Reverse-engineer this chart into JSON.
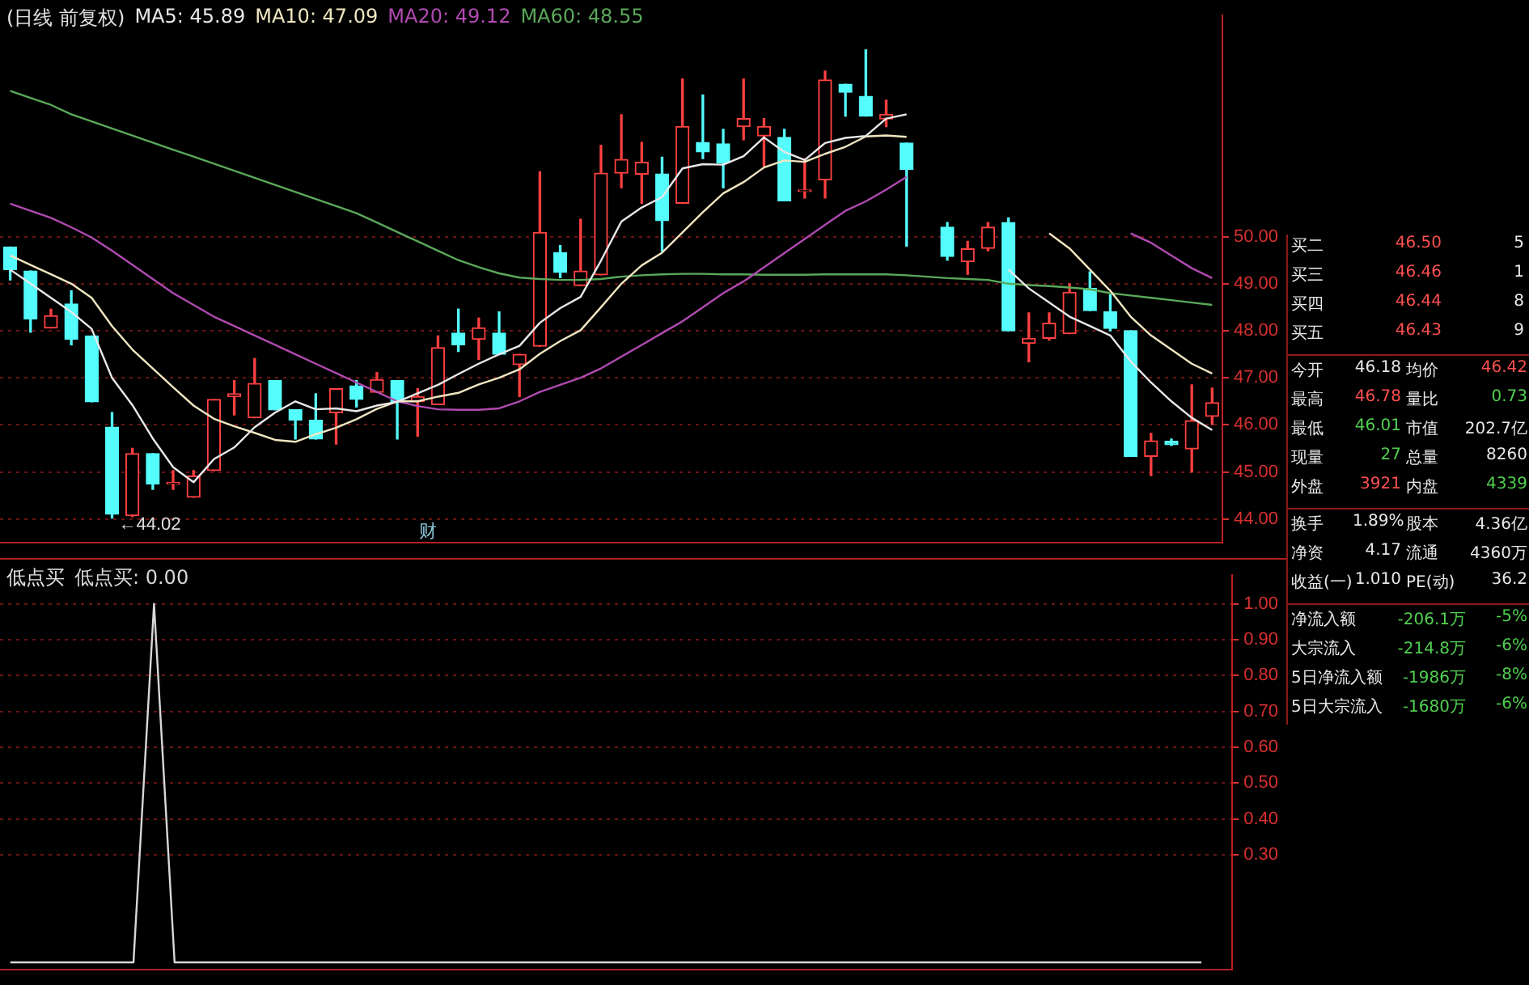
{
  "chart_data": [
    {
      "type": "candlestick",
      "title": "(日线 前复权)",
      "legend": "top left",
      "grid": "y",
      "tick_labels": "y",
      "colors": [
        "#54fcfc",
        "#54fcfc",
        "#ff4040",
        "#54fcfc",
        "#54fcfc",
        "#54fcfc",
        "#ff4040",
        "#54fcfc",
        "#ff4040",
        "#ff4040",
        "#ff4040",
        "#ff4040",
        "#ff4040",
        "#54fcfc",
        "#54fcfc",
        "#54fcfc",
        "#ff4040",
        "#54fcfc",
        "#ff4040",
        "#54fcfc",
        "#ff4040",
        "#ff4040",
        "#54fcfc",
        "#ff4040",
        "#54fcfc",
        "#ff4040",
        "#ff4040",
        "#54fcfc",
        "#ff4040",
        "#ff4040",
        "#ff4040",
        "#ff4040",
        "#54fcfc",
        "#ff4040",
        "#54fcfc",
        "#54fcfc",
        "#ff4040",
        "#ff4040",
        "#54fcfc",
        "#ff4040",
        "#ff4040",
        "#54fcfc",
        "#54fcfc",
        "#ff4040",
        "#54fcfc",
        "#54fcfc",
        "#54fcfc",
        "#ff4040",
        "#ff4040",
        "#54fcfc",
        "#ff4040",
        "#ff4040",
        "#ff4040",
        "#54fcfc",
        "#54fcfc",
        "#54fcfc",
        "#ff4040",
        "#54fcfc",
        "#ff4040",
        "#ff4040"
      ],
      "categories": [
        null,
        null,
        null,
        null,
        null,
        null,
        null,
        null,
        null,
        null,
        null,
        null,
        null,
        null,
        null,
        null,
        null,
        null,
        null,
        null,
        null,
        null,
        null,
        null,
        null,
        null,
        null,
        null,
        null,
        null,
        null,
        null,
        null,
        null,
        null,
        null,
        null,
        null,
        null,
        null,
        null,
        null,
        null,
        null,
        null,
        null,
        null,
        null,
        null,
        null,
        null,
        null,
        null,
        null,
        null,
        null,
        null,
        null,
        null,
        null
      ],
      "ohlc": [
        [
          49.78,
          49.78,
          49.08,
          49.3
        ],
        [
          49.27,
          49.27,
          47.97,
          48.25
        ],
        [
          48.06,
          48.46,
          48.06,
          48.32
        ],
        [
          48.57,
          48.85,
          47.7,
          47.82
        ],
        [
          47.89,
          47.89,
          46.49,
          46.49
        ],
        [
          45.95,
          46.26,
          44.02,
          44.1
        ],
        [
          44.07,
          45.5,
          44.05,
          45.39
        ],
        [
          45.39,
          45.39,
          44.63,
          44.74
        ],
        [
          44.74,
          45.03,
          44.63,
          44.76
        ],
        [
          44.46,
          45.03,
          44.46,
          44.91
        ],
        [
          45.03,
          46.54,
          45.03,
          46.54
        ],
        [
          46.6,
          46.94,
          46.21,
          46.66
        ],
        [
          46.15,
          47.41,
          46.15,
          46.88
        ],
        [
          46.94,
          46.94,
          46.32,
          46.32
        ],
        [
          46.32,
          46.32,
          45.7,
          46.1
        ],
        [
          46.1,
          46.66,
          45.7,
          45.7
        ],
        [
          46.26,
          46.77,
          45.59,
          46.77
        ],
        [
          46.83,
          46.94,
          46.38,
          46.54
        ],
        [
          46.69,
          47.11,
          46.69,
          46.96
        ],
        [
          46.94,
          46.94,
          45.7,
          46.49
        ],
        [
          46.49,
          46.77,
          45.76,
          46.6
        ],
        [
          46.43,
          47.89,
          46.43,
          47.64
        ],
        [
          47.95,
          48.46,
          47.56,
          47.7
        ],
        [
          47.82,
          48.27,
          47.39,
          48.06
        ],
        [
          47.95,
          48.4,
          47.5,
          47.5
        ],
        [
          47.28,
          47.5,
          46.6,
          47.5
        ],
        [
          47.67,
          51.38,
          47.67,
          50.09
        ],
        [
          49.66,
          49.81,
          49.13,
          49.24
        ],
        [
          48.96,
          50.37,
          48.96,
          49.27
        ],
        [
          49.19,
          51.94,
          49.19,
          51.35
        ],
        [
          51.35,
          52.59,
          51.04,
          51.64
        ],
        [
          51.33,
          52.0,
          50.71,
          51.58
        ],
        [
          51.33,
          51.69,
          49.69,
          50.34
        ],
        [
          50.71,
          53.35,
          50.71,
          52.34
        ],
        [
          52.0,
          53.01,
          51.66,
          51.8
        ],
        [
          51.97,
          52.28,
          51.04,
          51.57
        ],
        [
          52.34,
          53.35,
          52.06,
          52.51
        ],
        [
          52.14,
          52.51,
          51.49,
          52.34
        ],
        [
          52.11,
          52.28,
          50.76,
          50.76
        ],
        [
          50.96,
          51.66,
          50.82,
          50.99
        ],
        [
          51.21,
          53.52,
          50.82,
          53.33
        ],
        [
          53.24,
          53.24,
          52.56,
          53.07
        ],
        [
          52.98,
          53.97,
          52.56,
          52.56
        ],
        [
          52.5,
          52.9,
          52.34,
          52.6
        ],
        [
          51.99,
          51.99,
          49.8,
          51.43
        ],
        null,
        [
          50.2,
          50.3,
          49.5,
          49.58
        ],
        [
          49.47,
          49.9,
          49.2,
          49.74
        ],
        [
          49.75,
          50.3,
          49.7,
          50.2
        ],
        [
          50.3,
          50.4,
          48.0,
          48.0
        ],
        [
          47.73,
          48.38,
          47.34,
          47.84
        ],
        [
          47.84,
          48.38,
          47.8,
          48.16
        ],
        [
          47.94,
          49.0,
          47.94,
          48.82
        ],
        [
          48.9,
          49.25,
          48.43,
          48.43
        ],
        [
          48.4,
          48.76,
          48.0,
          48.05
        ],
        [
          48.0,
          48.0,
          45.33,
          45.33
        ],
        [
          45.33,
          45.82,
          44.92,
          45.66
        ],
        [
          45.65,
          45.7,
          45.56,
          45.58
        ],
        [
          45.49,
          46.85,
          45.0,
          46.09
        ],
        [
          46.18,
          46.78,
          46.01,
          46.47
        ]
      ],
      "series": [
        {
          "type": "line",
          "name": "MA5: 45.89",
          "color": "#e8e8e8",
          "values": [
            49.3,
            49.0,
            48.7,
            48.4,
            48.04,
            47.0,
            46.42,
            45.71,
            45.1,
            44.78,
            45.27,
            45.52,
            45.95,
            46.26,
            46.5,
            46.33,
            46.35,
            46.29,
            46.41,
            46.49,
            46.67,
            46.85,
            47.08,
            47.3,
            47.5,
            47.68,
            48.17,
            48.48,
            48.72,
            49.49,
            50.32,
            50.62,
            50.84,
            51.45,
            51.54,
            51.53,
            51.71,
            52.11,
            51.8,
            51.63,
            51.99,
            52.1,
            52.14,
            52.51,
            52.6,
            null,
            null,
            null,
            null,
            49.3,
            48.9,
            48.6,
            48.3,
            48.1,
            47.9,
            47.35,
            46.9,
            46.5,
            46.15,
            45.89
          ]
        },
        {
          "type": "line",
          "name": "MA10: 47.09",
          "color": "#f0e6c0",
          "values": [
            49.6,
            49.4,
            49.2,
            49.0,
            48.7,
            48.1,
            47.6,
            47.2,
            46.8,
            46.41,
            46.13,
            45.97,
            45.83,
            45.68,
            45.64,
            45.8,
            45.94,
            46.12,
            46.34,
            46.5,
            46.5,
            46.6,
            46.68,
            46.86,
            47.0,
            47.18,
            47.51,
            47.78,
            48.01,
            48.5,
            49.0,
            49.39,
            49.66,
            50.09,
            50.52,
            50.92,
            51.16,
            51.47,
            51.62,
            51.59,
            51.76,
            51.91,
            52.13,
            52.15,
            52.12,
            null,
            null,
            null,
            null,
            null,
            null,
            50.07,
            49.75,
            49.3,
            48.85,
            48.3,
            47.9,
            47.6,
            47.3,
            47.09
          ]
        },
        {
          "type": "line",
          "name": "MA20: 49.12",
          "color": "#b04ab0",
          "values": [
            50.7,
            50.55,
            50.4,
            50.2,
            49.98,
            49.7,
            49.4,
            49.1,
            48.8,
            48.55,
            48.3,
            48.1,
            47.9,
            47.7,
            47.5,
            47.3,
            47.1,
            46.9,
            46.7,
            46.5,
            46.4,
            46.33,
            46.32,
            46.32,
            46.35,
            46.5,
            46.7,
            46.85,
            47.0,
            47.2,
            47.45,
            47.7,
            47.95,
            48.2,
            48.5,
            48.8,
            49.05,
            49.35,
            49.65,
            49.95,
            50.25,
            50.55,
            50.75,
            51.0,
            51.27,
            null,
            null,
            null,
            null,
            null,
            null,
            null,
            null,
            null,
            null,
            50.07,
            49.87,
            49.6,
            49.33,
            49.12
          ]
        },
        {
          "type": "line",
          "name": "MA60: 48.55",
          "color": "#5aa85a",
          "values": [
            53.1,
            52.95,
            52.8,
            52.6,
            52.45,
            52.3,
            52.15,
            52.0,
            51.85,
            51.7,
            51.55,
            51.4,
            51.25,
            51.1,
            50.95,
            50.8,
            50.65,
            50.5,
            50.3,
            50.1,
            49.9,
            49.7,
            49.5,
            49.35,
            49.22,
            49.13,
            49.1,
            49.08,
            49.08,
            49.1,
            49.15,
            49.18,
            49.2,
            49.21,
            49.21,
            49.2,
            49.2,
            49.19,
            49.19,
            49.19,
            49.2,
            49.2,
            49.2,
            49.2,
            49.18,
            49.15,
            49.12,
            49.1,
            49.08,
            49.0,
            48.97,
            48.95,
            48.92,
            48.88,
            48.8,
            48.75,
            48.7,
            48.65,
            48.6,
            48.55
          ]
        }
      ],
      "ylim": [
        43.5,
        54.7
      ],
      "yticks": [
        {
          "value": 44,
          "label": "44.00"
        },
        {
          "value": 45,
          "label": "45.00"
        },
        {
          "value": 46,
          "label": "46.00"
        },
        {
          "value": 47,
          "label": "47.00"
        },
        {
          "value": 48,
          "label": "48.00"
        },
        {
          "value": 49,
          "label": "49.00"
        },
        {
          "value": 50,
          "label": "50.00"
        }
      ],
      "annotations": [
        "←44.02",
        "财"
      ]
    },
    {
      "type": "line",
      "title": "低点买",
      "legend": "top left",
      "grid": "y",
      "tick_labels": "y",
      "categories": [
        null,
        null,
        null,
        null,
        null,
        null,
        null,
        null,
        null,
        null,
        null,
        null,
        null,
        null,
        null,
        null,
        null,
        null,
        null,
        null,
        null,
        null,
        null,
        null,
        null,
        null,
        null,
        null,
        null,
        null,
        null,
        null,
        null,
        null,
        null,
        null,
        null,
        null,
        null,
        null,
        null,
        null,
        null,
        null,
        null,
        null,
        null,
        null,
        null,
        null,
        null,
        null,
        null,
        null,
        null,
        null,
        null,
        null,
        null,
        null
      ],
      "series": [
        {
          "name": "低点买: 0.00",
          "color": "#d8d8d8",
          "values": [
            0,
            0,
            0,
            0,
            0,
            0,
            0,
            1,
            0,
            0,
            0,
            0,
            0,
            0,
            0,
            0,
            0,
            0,
            0,
            0,
            0,
            0,
            0,
            0,
            0,
            0,
            0,
            0,
            0,
            0,
            0,
            0,
            0,
            0,
            0,
            0,
            0,
            0,
            0,
            0,
            0,
            0,
            0,
            0,
            0,
            0,
            0,
            0,
            0,
            0,
            0,
            0,
            0,
            0,
            0,
            0,
            0,
            0,
            0,
            null
          ]
        }
      ],
      "ylim": [
        -0.02,
        1.08
      ],
      "yticks": [
        {
          "value": 0.3,
          "label": "0.30"
        },
        {
          "value": 0.4,
          "label": "0.40"
        },
        {
          "value": 0.5,
          "label": "0.50"
        },
        {
          "value": 0.6,
          "label": "0.60"
        },
        {
          "value": 0.7,
          "label": "0.70"
        },
        {
          "value": 0.8,
          "label": "0.80"
        },
        {
          "value": 0.9,
          "label": "0.90"
        },
        {
          "value": 1,
          "label": "1.00"
        }
      ]
    },
    {
      "type": "other",
      "annotations": [
        "买二",
        "46.50",
        "5",
        "买三",
        "46.46",
        "1",
        "买四",
        "46.44",
        "8",
        "买五",
        "46.43",
        "9",
        "今开",
        "46.18",
        "均价",
        "46.42",
        "最高",
        "46.78",
        "量比",
        "0.73",
        "最低",
        "46.01",
        "市值",
        "202.7亿",
        "现量",
        "27",
        "总量",
        "8260",
        "外盘",
        "3921",
        "内盘",
        "4339",
        "换手",
        "1.89%",
        "股本",
        "4.36亿",
        "净资",
        "4.17",
        "流通",
        "4360万",
        "收益(一)",
        "1.010",
        "PE(动)",
        "36.2",
        "净流入额",
        "-206.1万",
        "-5%",
        "大宗流入",
        "-214.8万",
        "-6%",
        "5日净流入额",
        "-1986万",
        "-8%",
        "5日大宗流入",
        "-1680万",
        "-6%"
      ]
    }
  ]
}
